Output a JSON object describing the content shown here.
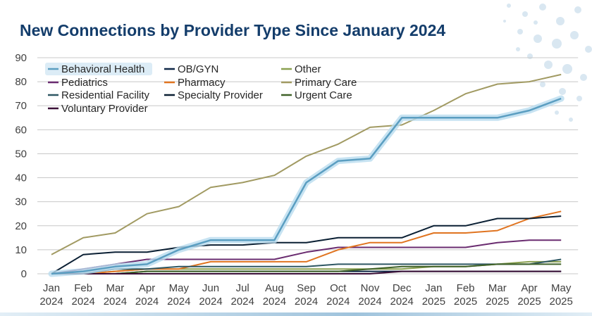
{
  "slide": {
    "title": "New Connections by Provider Type Since January 2024",
    "colors": {
      "title": "#143d6b",
      "decor": "#d9e7f1",
      "gridline": "#c8c8c8"
    }
  },
  "chart_data": {
    "type": "line",
    "title": "New Connections by Provider Type Since January 2024",
    "xlabel": "",
    "ylabel": "",
    "ylim": [
      0,
      90
    ],
    "yticks": [
      0,
      10,
      20,
      30,
      40,
      50,
      60,
      70,
      80,
      90
    ],
    "grid": true,
    "legend_position": "top-left",
    "categories": [
      [
        "Jan",
        "2024"
      ],
      [
        "Feb",
        "2024"
      ],
      [
        "Mar",
        "2024"
      ],
      [
        "Apr",
        "2024"
      ],
      [
        "May",
        "2024"
      ],
      [
        "Jun",
        "2024"
      ],
      [
        "Jul",
        "2024"
      ],
      [
        "Aug",
        "2024"
      ],
      [
        "Sep",
        "2024"
      ],
      [
        "Oct",
        "2024"
      ],
      [
        "Nov",
        "2024"
      ],
      [
        "Dec",
        "2024"
      ],
      [
        "Jan",
        "2025"
      ],
      [
        "Feb",
        "2025"
      ],
      [
        "Mar",
        "2025"
      ],
      [
        "Apr",
        "2025"
      ],
      [
        "May",
        "2025"
      ]
    ],
    "series": [
      {
        "name": "Behavioral Health",
        "color": "#5b9ec1",
        "highlight": true,
        "values": [
          0,
          1,
          3,
          4,
          10,
          14,
          14,
          14,
          38,
          47,
          48,
          65,
          65,
          65,
          65,
          68,
          73
        ]
      },
      {
        "name": "OB/GYN",
        "color": "#0f2747",
        "values": [
          0,
          0,
          0,
          1,
          1,
          1,
          1,
          1,
          1,
          1,
          1,
          1,
          1,
          1,
          1,
          1,
          1
        ]
      },
      {
        "name": "Other",
        "color": "#8aa050",
        "values": [
          0,
          0,
          1,
          2,
          2,
          2,
          2,
          2,
          2,
          2,
          2,
          2,
          3,
          3,
          4,
          5,
          5
        ]
      },
      {
        "name": "Pediatrics",
        "color": "#6a2c70",
        "values": [
          0,
          2,
          4,
          6,
          6,
          6,
          6,
          6,
          9,
          11,
          11,
          11,
          11,
          11,
          13,
          14,
          14
        ]
      },
      {
        "name": "Pharmacy",
        "color": "#e07420",
        "values": [
          0,
          0,
          1,
          2,
          2,
          5,
          5,
          5,
          5,
          10,
          13,
          13,
          17,
          17,
          18,
          23,
          26
        ]
      },
      {
        "name": "Primary Care",
        "color": "#a19a62",
        "values": [
          8,
          15,
          17,
          25,
          28,
          36,
          38,
          41,
          49,
          54,
          61,
          62,
          68,
          75,
          79,
          80,
          83
        ]
      },
      {
        "name": "Residential Facility",
        "color": "#2e5763",
        "values": [
          0,
          0,
          2,
          2,
          3,
          3,
          3,
          3,
          3,
          4,
          4,
          4,
          4,
          4,
          4,
          4,
          6
        ]
      },
      {
        "name": "Specialty Provider",
        "color": "#0a1f33",
        "values": [
          0,
          8,
          9,
          9,
          11,
          12,
          12,
          13,
          13,
          15,
          15,
          15,
          20,
          20,
          23,
          23,
          24
        ]
      },
      {
        "name": "Urgent Care",
        "color": "#3f6128",
        "values": [
          0,
          0,
          0,
          1,
          1,
          1,
          1,
          1,
          1,
          1,
          2,
          3,
          3,
          3,
          4,
          4,
          4
        ]
      },
      {
        "name": "Voluntary Provider",
        "color": "#3a0f36",
        "values": [
          0,
          0,
          0,
          0,
          0,
          0,
          0,
          0,
          0,
          0,
          0,
          1,
          1,
          1,
          1,
          1,
          1
        ]
      }
    ]
  }
}
